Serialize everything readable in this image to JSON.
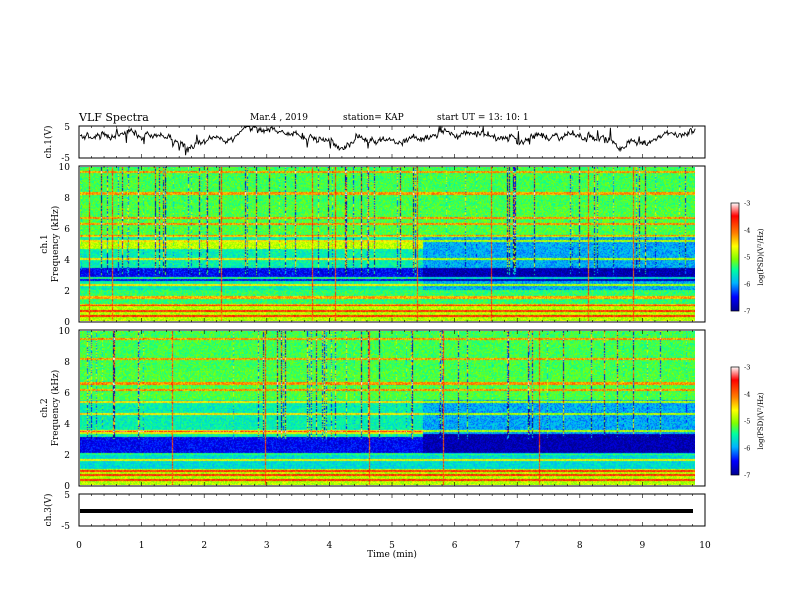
{
  "header": {
    "title": "VLF Spectra",
    "date": "Mar.4 , 2019",
    "station": "station= KAP",
    "start_ut": "start  UT =   13: 10: 1"
  },
  "chart_data": [
    {
      "type": "line",
      "name": "ch1-waveform",
      "ylabel": "ch.1(V)",
      "yticks": [
        "5",
        "-5"
      ],
      "ylim": [
        -5,
        5
      ],
      "xlim": [
        0,
        10
      ],
      "approx_level": "near upper half, noisy"
    },
    {
      "type": "heatmap",
      "name": "ch1-spectrogram",
      "ylabel": "ch.1\nFrequency (kHz)",
      "ylabel_top": "ch.1",
      "ylabel_bottom": "Frequency (kHz)",
      "yticks": [
        "0",
        "2",
        "4",
        "6",
        "8",
        "10"
      ],
      "ylim": [
        0,
        10
      ],
      "xlim": [
        0,
        9.85
      ],
      "colorbar": {
        "label": "log(PSD)(V²/Hz)",
        "ticks": [
          "-3",
          "-4",
          "-5",
          "-6",
          "-7"
        ],
        "range": [
          -7,
          -3
        ]
      },
      "dark_band_freq_khz": [
        2.6,
        3.4
      ],
      "change_time_min": 5.5
    },
    {
      "type": "heatmap",
      "name": "ch2-spectrogram",
      "ylabel_top": "ch.2",
      "ylabel_bottom": "Frequency (kHz)",
      "yticks": [
        "0",
        "2",
        "4",
        "6",
        "8",
        "10"
      ],
      "ylim": [
        0,
        10
      ],
      "xlim": [
        0,
        9.85
      ],
      "colorbar": {
        "label": "log(PSD)(V²/Hz)",
        "ticks": [
          "-3",
          "-4",
          "-5",
          "-6",
          "-7"
        ],
        "range": [
          -7,
          -3
        ]
      },
      "dark_band_freq_khz": [
        1.9,
        3.3
      ],
      "change_time_min": 5.5
    },
    {
      "type": "line",
      "name": "ch3-waveform",
      "ylabel": "ch.3(V)",
      "yticks": [
        "5",
        "-5"
      ],
      "ylim": [
        -5,
        5
      ],
      "xlim": [
        0,
        9.85
      ],
      "level": 0
    }
  ],
  "xaxis": {
    "label": "Time (min)",
    "ticks": [
      "0",
      "1",
      "2",
      "3",
      "4",
      "5",
      "6",
      "7",
      "8",
      "9",
      "10"
    ]
  },
  "colors": {
    "colormap": [
      "#00008f",
      "#0000ff",
      "#00b4ff",
      "#00ffa0",
      "#80ff00",
      "#ffff00",
      "#ff8000",
      "#ff0000",
      "#ffffff"
    ]
  }
}
